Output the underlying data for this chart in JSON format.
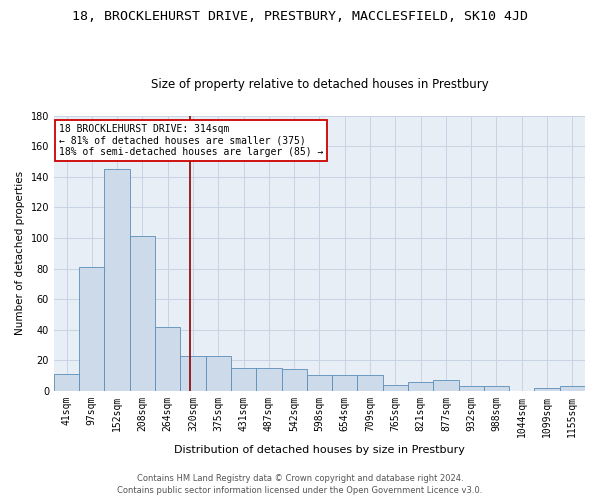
{
  "title1": "18, BROCKLEHURST DRIVE, PRESTBURY, MACCLESFIELD, SK10 4JD",
  "title2": "Size of property relative to detached houses in Prestbury",
  "xlabel": "Distribution of detached houses by size in Prestbury",
  "ylabel": "Number of detached properties",
  "categories": [
    "41sqm",
    "97sqm",
    "152sqm",
    "208sqm",
    "264sqm",
    "320sqm",
    "375sqm",
    "431sqm",
    "487sqm",
    "542sqm",
    "598sqm",
    "654sqm",
    "709sqm",
    "765sqm",
    "821sqm",
    "877sqm",
    "932sqm",
    "988sqm",
    "1044sqm",
    "1099sqm",
    "1155sqm"
  ],
  "values": [
    11,
    81,
    145,
    101,
    42,
    23,
    23,
    15,
    15,
    14,
    10,
    10,
    10,
    4,
    6,
    7,
    3,
    3,
    0,
    2,
    3
  ],
  "bar_color": "#cddaea",
  "bar_edge_color": "#5b8db8",
  "grid_color": "#c8d4e4",
  "background_color": "#e8eef6",
  "red_line_x": 4.89,
  "annotation_line1": "18 BROCKLEHURST DRIVE: 314sqm",
  "annotation_line2": "← 81% of detached houses are smaller (375)",
  "annotation_line3": "18% of semi-detached houses are larger (85) →",
  "annotation_box_color": "#ffffff",
  "annotation_box_edge": "#cc0000",
  "footnote1": "Contains HM Land Registry data © Crown copyright and database right 2024.",
  "footnote2": "Contains public sector information licensed under the Open Government Licence v3.0.",
  "ylim": [
    0,
    180
  ],
  "title1_fontsize": 9.5,
  "title2_fontsize": 8.5,
  "xlabel_fontsize": 8,
  "ylabel_fontsize": 7.5,
  "tick_fontsize": 7,
  "annotation_fontsize": 7,
  "footnote_fontsize": 6
}
